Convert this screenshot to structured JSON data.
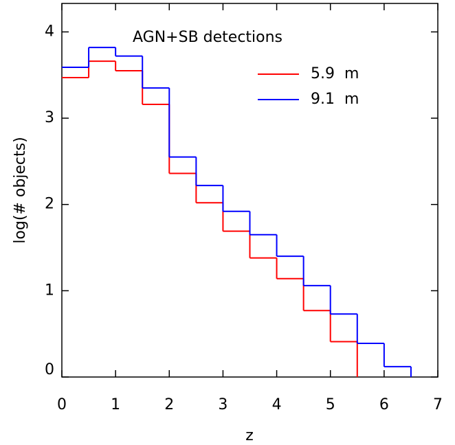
{
  "chart_data": {
    "type": "step-histogram",
    "annotation": "AGN+SB detections",
    "xlabel": "z",
    "ylabel": "log(# objects)",
    "xlim": [
      0,
      7
    ],
    "ylim": [
      0,
      4.33
    ],
    "xticks": [
      0,
      1,
      2,
      3,
      4,
      5,
      6,
      7
    ],
    "yticks": [
      0,
      1,
      2,
      3,
      4
    ],
    "legend": "upper right",
    "series": [
      {
        "name": "5.9  m",
        "color": "#ff0000",
        "bins": [
          0,
          0.5,
          1,
          1.5,
          2,
          2.5,
          3,
          3.5,
          4,
          4.5,
          5,
          5.5
        ],
        "values": [
          3.47,
          3.66,
          3.55,
          3.16,
          2.36,
          2.02,
          1.69,
          1.38,
          1.14,
          0.77,
          0.41
        ]
      },
      {
        "name": "9.1  m",
        "color": "#0000ff",
        "bins": [
          0,
          0.5,
          1,
          1.5,
          2,
          2.5,
          3,
          3.5,
          4,
          4.5,
          5,
          5.5,
          6,
          6.5
        ],
        "values": [
          3.59,
          3.82,
          3.72,
          3.35,
          2.55,
          2.22,
          1.92,
          1.65,
          1.4,
          1.06,
          0.73,
          0.39,
          0.12
        ]
      }
    ]
  }
}
